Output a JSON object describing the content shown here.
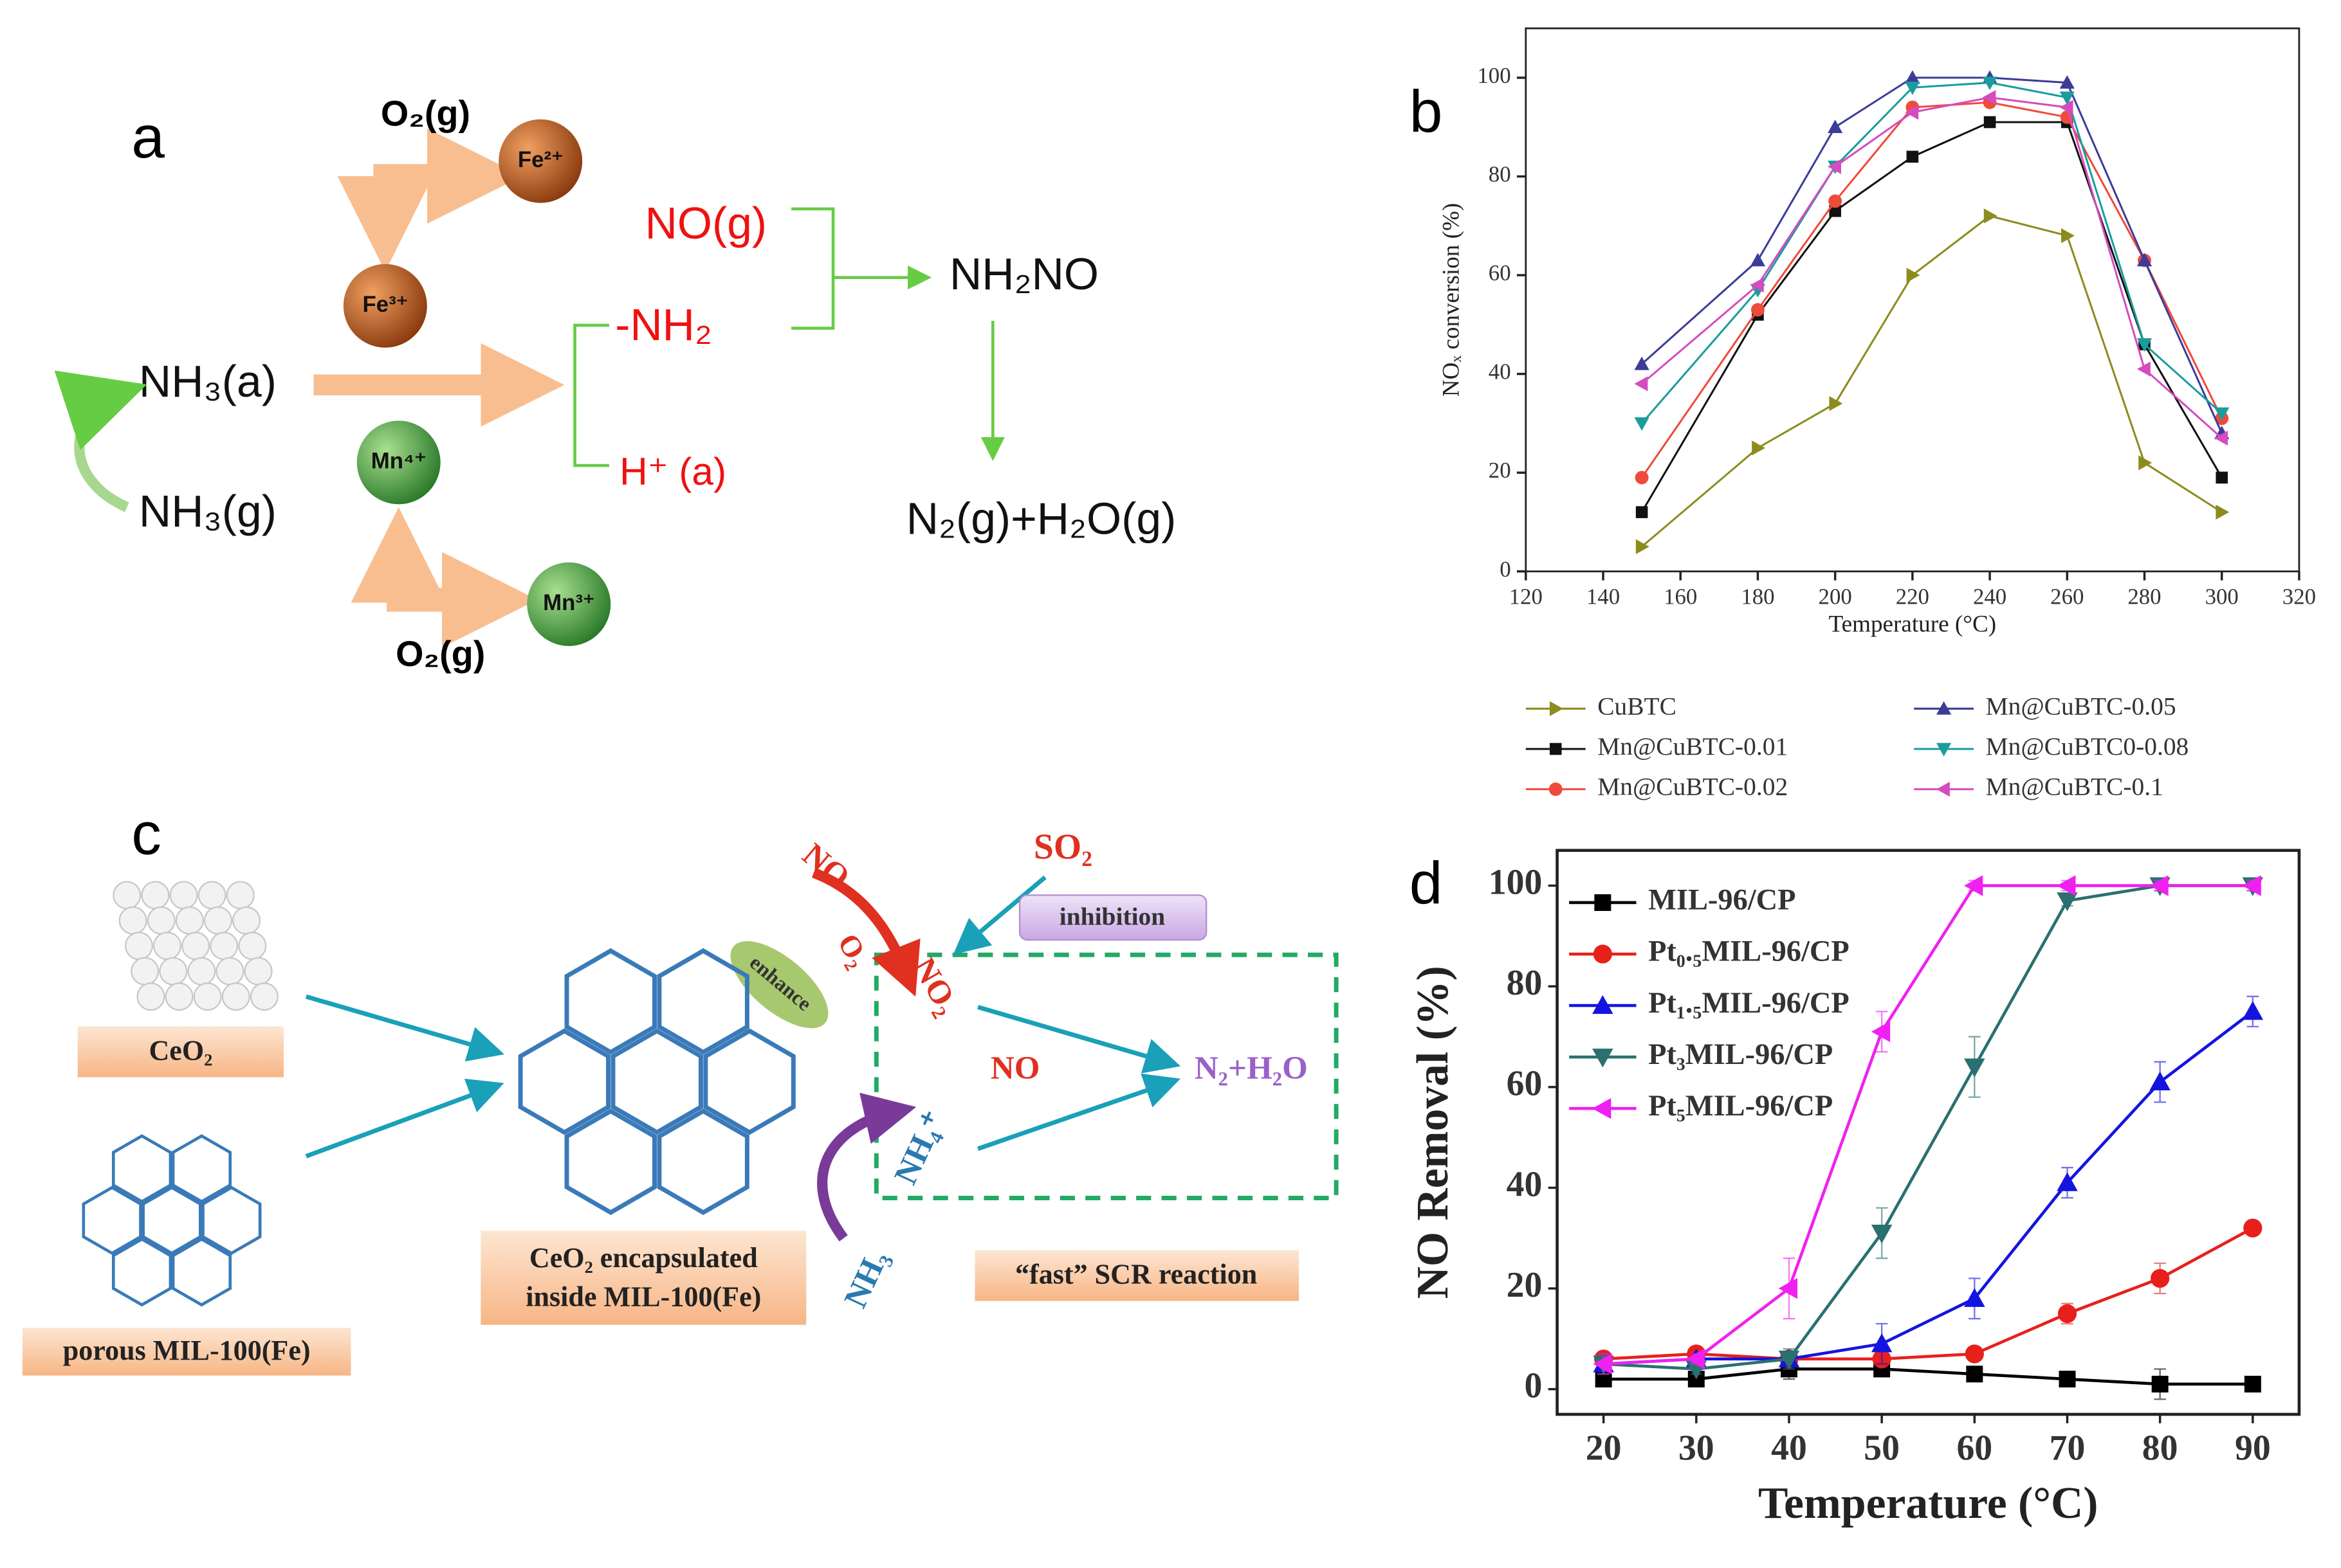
{
  "panel_labels": [
    "a",
    "b",
    "c",
    "d"
  ],
  "diagram_a": {
    "o2_top": "O₂(g)",
    "fe2": "Fe²⁺",
    "fe3": "Fe³⁺",
    "mn4": "Mn⁴⁺",
    "mn3": "Mn³⁺",
    "o2_bottom": "O₂(g)",
    "nh3_a": "NH₃(a)",
    "nh3_g": "NH₃(g)",
    "no_g": "NO(g)",
    "nh2": "-NH₂",
    "h_a": "H⁺ (a)",
    "nh2no": "NH₂NO",
    "products": "N₂(g)+H₂O(g)"
  },
  "diagram_c": {
    "ceo2": "CeO₂",
    "mil100": "porous MIL-100(Fe)",
    "encapsulated": [
      "CeO₂ encapsulated",
      "inside MIL-100(Fe)"
    ],
    "no_top": "NO",
    "o2": "O₂",
    "no2": "NO₂",
    "enhance": "enhance",
    "so2": "SO₂",
    "inhibition": "inhibition",
    "no_mid": "NO",
    "nh4": "NH₄⁺",
    "nh3": "NH₃",
    "products": "N₂+H₂O",
    "fast": "“fast” SCR reaction"
  },
  "chart_data": [
    {
      "type": "line",
      "xlabel": "Temperature (°C)",
      "ylabel": "NOₓ conversion (%)",
      "x": [
        150,
        180,
        200,
        220,
        240,
        260,
        280,
        300
      ],
      "xlim": [
        120,
        320
      ],
      "xticks": [
        120,
        140,
        160,
        180,
        200,
        220,
        240,
        260,
        280,
        300,
        320
      ],
      "ylim": [
        0,
        110
      ],
      "yticks": [
        0,
        20,
        40,
        60,
        80,
        100
      ],
      "grid": false,
      "legend": "bottom",
      "series": [
        {
          "name": "CuBTC",
          "color": "#8c8c1e",
          "marker": "triangle-right",
          "values": [
            5,
            25,
            34,
            60,
            72,
            68,
            22,
            12
          ]
        },
        {
          "name": "Mn@CuBTC-0.01",
          "color": "#111111",
          "marker": "square",
          "values": [
            12,
            52,
            73,
            84,
            91,
            91,
            46,
            19
          ]
        },
        {
          "name": "Mn@CuBTC-0.02",
          "color": "#f04a3c",
          "marker": "circle",
          "values": [
            19,
            53,
            75,
            94,
            95,
            92,
            63,
            31
          ]
        },
        {
          "name": "Mn@CuBTC-0.05",
          "color": "#3c3c98",
          "marker": "triangle-up",
          "values": [
            42,
            63,
            90,
            100,
            100,
            99,
            63,
            28
          ]
        },
        {
          "name": "Mn@CuBTC0-0.08",
          "color": "#1a9c9c",
          "marker": "triangle-down",
          "values": [
            30,
            57,
            82,
            98,
            99,
            96,
            46,
            32
          ]
        },
        {
          "name": "Mn@CuBTC-0.1",
          "color": "#d44cc0",
          "marker": "triangle-left",
          "values": [
            38,
            58,
            82,
            93,
            96,
            94,
            41,
            27
          ]
        }
      ]
    },
    {
      "type": "line",
      "xlabel": "Temperature (°C)",
      "ylabel": "NO Removal (%)",
      "x": [
        20,
        30,
        40,
        50,
        60,
        70,
        80,
        90
      ],
      "xlim": [
        15,
        95
      ],
      "xticks": [
        20,
        30,
        40,
        50,
        60,
        70,
        80,
        90
      ],
      "ylim": [
        -5,
        107
      ],
      "yticks": [
        0,
        20,
        40,
        60,
        80,
        100
      ],
      "grid": false,
      "legend": "upper left",
      "series": [
        {
          "name": "MIL-96/CP",
          "color": "#000000",
          "marker": "square",
          "values": [
            2,
            2,
            4,
            4,
            3,
            2,
            1,
            1
          ],
          "errors": [
            1,
            1,
            2,
            1,
            1,
            1,
            3,
            1
          ]
        },
        {
          "name": "Pt₀.₅MIL-96/CP",
          "color": "#e8201c",
          "marker": "circle",
          "values": [
            6,
            7,
            6,
            6,
            7,
            15,
            22,
            32
          ],
          "errors": [
            1,
            1,
            1,
            1,
            1,
            2,
            3,
            1
          ]
        },
        {
          "name": "Pt₁.₅MIL-96/CP",
          "color": "#1414e0",
          "marker": "triangle-up",
          "values": [
            5,
            6,
            6,
            9,
            18,
            41,
            61,
            75
          ],
          "errors": [
            2,
            1,
            1,
            4,
            4,
            3,
            4,
            3
          ]
        },
        {
          "name": "Pt₃MIL-96/CP",
          "color": "#2a7070",
          "marker": "triangle-down",
          "values": [
            5,
            4,
            6,
            31,
            64,
            97,
            100,
            100
          ],
          "errors": [
            2,
            1,
            2,
            5,
            6,
            1,
            1,
            1
          ]
        },
        {
          "name": "Pt₅MIL-96/CP",
          "color": "#f020f0",
          "marker": "triangle-left",
          "values": [
            5,
            6,
            20,
            71,
            100,
            100,
            100,
            100
          ],
          "errors": [
            2,
            1,
            6,
            4,
            1,
            1,
            1,
            1
          ]
        }
      ]
    }
  ]
}
